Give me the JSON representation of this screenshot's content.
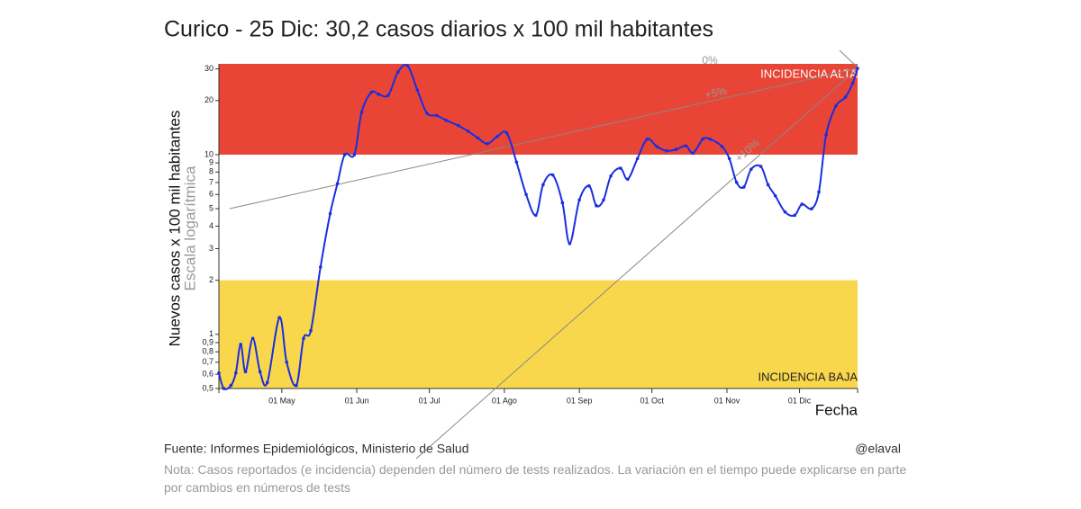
{
  "chart_data": {
    "type": "line",
    "title": "Curico - 25 Dic: 30,2 casos diarios x 100 mil habitantes",
    "y_label": "Nuevos casos x 100 mil habitantes",
    "y_sublabel": "Escala logarítmica",
    "x_label": "Fecha",
    "log_scale": true,
    "color": "#1a2ee0",
    "x": [
      "04-05",
      "04-07",
      "04-10",
      "04-12",
      "04-14",
      "04-16",
      "04-19",
      "04-22",
      "04-25",
      "04-30",
      "05-03",
      "05-07",
      "05-10",
      "05-13",
      "05-17",
      "05-21",
      "05-24",
      "05-27",
      "05-31",
      "06-03",
      "06-07",
      "06-10",
      "06-14",
      "06-18",
      "06-22",
      "06-26",
      "06-30",
      "07-04",
      "07-08",
      "07-13",
      "07-17",
      "07-21",
      "07-25",
      "07-29",
      "08-02",
      "08-06",
      "08-10",
      "08-14",
      "08-17",
      "08-21",
      "08-25",
      "08-28",
      "09-01",
      "09-05",
      "09-08",
      "09-11",
      "09-14",
      "09-18",
      "09-21",
      "09-25",
      "09-29",
      "10-03",
      "10-07",
      "10-11",
      "10-15",
      "10-18",
      "10-22",
      "10-25",
      "10-30",
      "11-02",
      "11-05",
      "11-08",
      "11-11",
      "11-15",
      "11-18",
      "11-21",
      "11-25",
      "11-29",
      "12-02",
      "12-06",
      "12-09",
      "12-12",
      "12-16",
      "12-20",
      "12-23",
      "12-25"
    ],
    "values": [
      0.61,
      0.5,
      0.52,
      0.61,
      0.88,
      0.62,
      0.95,
      0.62,
      0.54,
      1.24,
      0.7,
      0.52,
      0.95,
      1.05,
      2.37,
      4.7,
      6.9,
      10,
      10,
      17.2,
      22.2,
      21.7,
      21.4,
      28.8,
      31.2,
      22.9,
      17,
      16.5,
      15.5,
      14.5,
      13.5,
      12.4,
      11.5,
      12.6,
      13.2,
      9.1,
      6,
      4.6,
      6.8,
      7.7,
      5.4,
      3.2,
      5.6,
      6.7,
      5.2,
      5.6,
      7.6,
      8.4,
      7.3,
      9.5,
      12.2,
      11.1,
      10.5,
      10.7,
      11.2,
      10.2,
      12.2,
      12.2,
      11.1,
      9.5,
      7,
      6.6,
      8.3,
      8.6,
      6.8,
      5.9,
      4.8,
      4.6,
      5.3,
      5,
      6.2,
      12.9,
      18.6,
      20.9,
      25,
      30.2
    ],
    "xlim": [
      "04-05",
      "12-25"
    ],
    "xticks": [
      {
        "value": "05-01",
        "label": "01 May"
      },
      {
        "value": "06-01",
        "label": "01 Jun"
      },
      {
        "value": "07-01",
        "label": "01 Jul"
      },
      {
        "value": "08-01",
        "label": "01 Ago"
      },
      {
        "value": "09-01",
        "label": "01 Sep"
      },
      {
        "value": "10-01",
        "label": "01 Oct"
      },
      {
        "value": "11-01",
        "label": "01 Nov"
      },
      {
        "value": "12-01",
        "label": "01 Dic"
      }
    ],
    "ylim": [
      0.5,
      32
    ],
    "yticks": [
      {
        "value": 0.5,
        "label": "0,5"
      },
      {
        "value": 0.6,
        "label": "0,6"
      },
      {
        "value": 0.7,
        "label": "0,7"
      },
      {
        "value": 0.8,
        "label": "0,8"
      },
      {
        "value": 0.9,
        "label": "0,9"
      },
      1,
      2,
      3,
      4,
      5,
      6,
      7,
      8,
      9,
      10,
      20,
      30
    ],
    "bands": [
      {
        "from": 10,
        "to": 32,
        "label": "INCIDENCIA ALTA",
        "color": "#e94536"
      },
      {
        "from": 0.5,
        "to": 2,
        "label": "INCIDENCIA BAJA",
        "color": "#f8d74c"
      }
    ],
    "growth_lines": [
      "0%",
      "+5%",
      "+10%"
    ],
    "source": "Fuente: Informes Epidemiológicos, Ministerio de Salud",
    "author": "@elaval",
    "note": "Nota: Casos reportados (e incidencia) dependen del número de tests realizados. La variación en el tiempo puede explicarse en parte por cambios en números de tests"
  }
}
